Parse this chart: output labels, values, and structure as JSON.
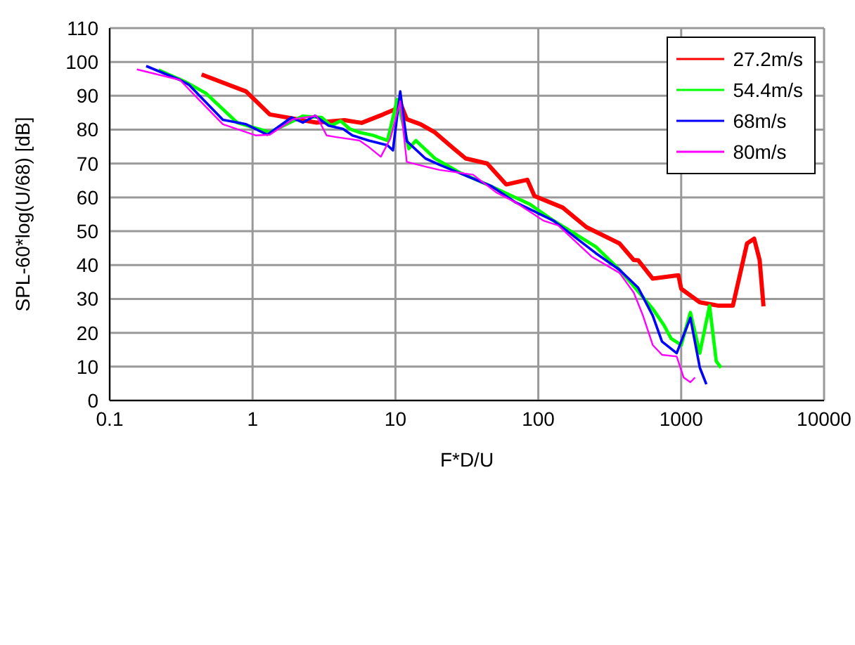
{
  "chart_data": {
    "type": "line",
    "xlabel": "F*D/U",
    "ylabel": "SPL-60*log(U/68) [dB]",
    "log": "x",
    "xlim": [
      0.1,
      10000
    ],
    "xticks": [
      0.1,
      1,
      10,
      100,
      1000,
      10000
    ],
    "ylim": [
      0,
      110
    ],
    "yticks": [
      0,
      10,
      20,
      30,
      40,
      50,
      60,
      70,
      80,
      90,
      100,
      110
    ],
    "grid": true,
    "legend": "top right",
    "marker": "none",
    "line_style": "solid",
    "series": [
      {
        "name": "27.2m/s",
        "color": "#ff0000",
        "x": [
          0.44,
          0.9,
          1.32,
          2.8,
          4.4,
          5.8,
          8.2,
          9.9,
          10.7,
          12,
          15,
          18.9,
          25.6,
          31,
          43.9,
          59.6,
          83.8,
          94,
          148,
          217,
          370,
          465,
          501,
          632,
          956,
          1000,
          1350,
          1830,
          2300,
          2890,
          3240,
          3540,
          3770
        ],
        "values": [
          96.3,
          91.3,
          84.5,
          82.1,
          82.8,
          82,
          84.5,
          86,
          88.4,
          83.1,
          81.6,
          79.2,
          74.4,
          71.5,
          70,
          63.8,
          65.2,
          60.4,
          57,
          51.2,
          46.4,
          41.5,
          41.4,
          36,
          37,
          33,
          29,
          28,
          28,
          46.4,
          47.8,
          41.5,
          27.8
        ]
      },
      {
        "name": "54.4m/s",
        "color": "#00ff00",
        "x": [
          0.22,
          0.336,
          0.47,
          0.78,
          1.32,
          2.25,
          3.04,
          3.55,
          4.13,
          4.8,
          5.6,
          7,
          8.8,
          10.3,
          12.4,
          13.9,
          18.9,
          28.6,
          43.9,
          69.5,
          87,
          128,
          253,
          370,
          465,
          632,
          759,
          850,
          1000,
          1160,
          1350,
          1580,
          1760,
          1900
        ],
        "values": [
          97.6,
          94.2,
          90.8,
          82.1,
          79.2,
          84,
          83.6,
          81.2,
          82.6,
          80.2,
          79.2,
          78.3,
          76.8,
          88.9,
          74.4,
          76.8,
          71.5,
          67.2,
          63.8,
          59.9,
          58,
          53.1,
          45.4,
          38.6,
          33.8,
          27.1,
          22.2,
          18.3,
          16.4,
          26,
          14,
          28,
          11.6,
          9.7
        ]
      },
      {
        "name": "68m/s",
        "color": "#0000ff",
        "x": [
          0.18,
          0.31,
          0.36,
          0.62,
          0.9,
          1.27,
          1.87,
          2.25,
          2.73,
          3.4,
          4.3,
          5,
          6.5,
          8.8,
          9.6,
          10.8,
          12,
          16.2,
          20.4,
          30,
          47,
          69.5,
          128,
          253,
          370,
          500,
          632,
          734,
          930,
          1160,
          1350,
          1500
        ],
        "values": [
          98.8,
          94.7,
          93.2,
          82.9,
          81.6,
          78.5,
          83.6,
          82.1,
          84.1,
          81.2,
          80.2,
          78.3,
          76.8,
          75.4,
          73.9,
          91.3,
          76.6,
          71.5,
          69.6,
          66.7,
          63.3,
          58.5,
          53.1,
          43.5,
          38.6,
          33.3,
          25.1,
          17.4,
          14,
          24.4,
          9.7,
          4.8
        ]
      },
      {
        "name": "80m/s",
        "color": "#ff00ff",
        "x": [
          0.155,
          0.31,
          0.42,
          0.62,
          1.05,
          1.32,
          1.93,
          2.8,
          3.3,
          3.85,
          5.6,
          6.5,
          7.9,
          9.2,
          10.8,
          12,
          16.2,
          20.4,
          34.9,
          51,
          69.5,
          109,
          138,
          236,
          370,
          465,
          540,
          632,
          734,
          930,
          1040,
          1160,
          1250
        ],
        "values": [
          97.8,
          94.7,
          88.9,
          81.6,
          78.3,
          78.5,
          83.1,
          84.1,
          78.3,
          77.8,
          76.8,
          74.9,
          72,
          77.3,
          88.4,
          70.5,
          69.1,
          68.1,
          66.7,
          61.4,
          58.5,
          53.1,
          51.7,
          42.5,
          37.7,
          31.9,
          25.1,
          16.4,
          13.5,
          13,
          6.8,
          5.4,
          6.8
        ]
      }
    ]
  }
}
